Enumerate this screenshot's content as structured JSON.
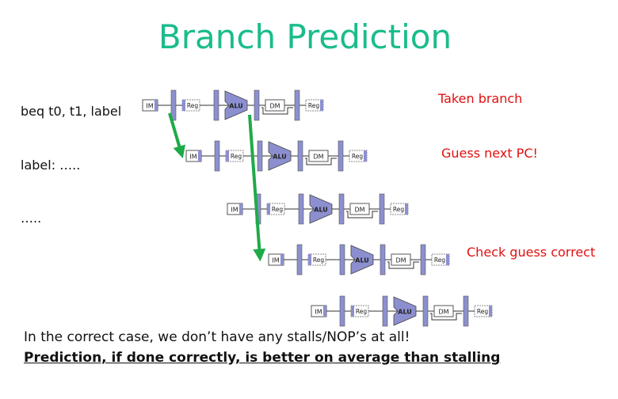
{
  "title": "Branch Prediction",
  "instructions": [
    "beq t0, t1, label",
    "label: …..",
    "….."
  ],
  "annotations": [
    "Taken branch",
    "Guess next PC!",
    "Check guess correct"
  ],
  "stage_labels": {
    "im": "IM",
    "reg": "Reg",
    "alu": "ALU",
    "dm": "DM"
  },
  "footer": {
    "line1": "In the correct case, we don’t have any stalls/NOP’s at all!",
    "line2": "Prediction, if done correctly, is better on average than stalling"
  },
  "colors": {
    "title": "#1ABC8C",
    "annotation": "#E01010",
    "arrow": "#1FAA48",
    "stage_fill": "#8C8FCF"
  }
}
